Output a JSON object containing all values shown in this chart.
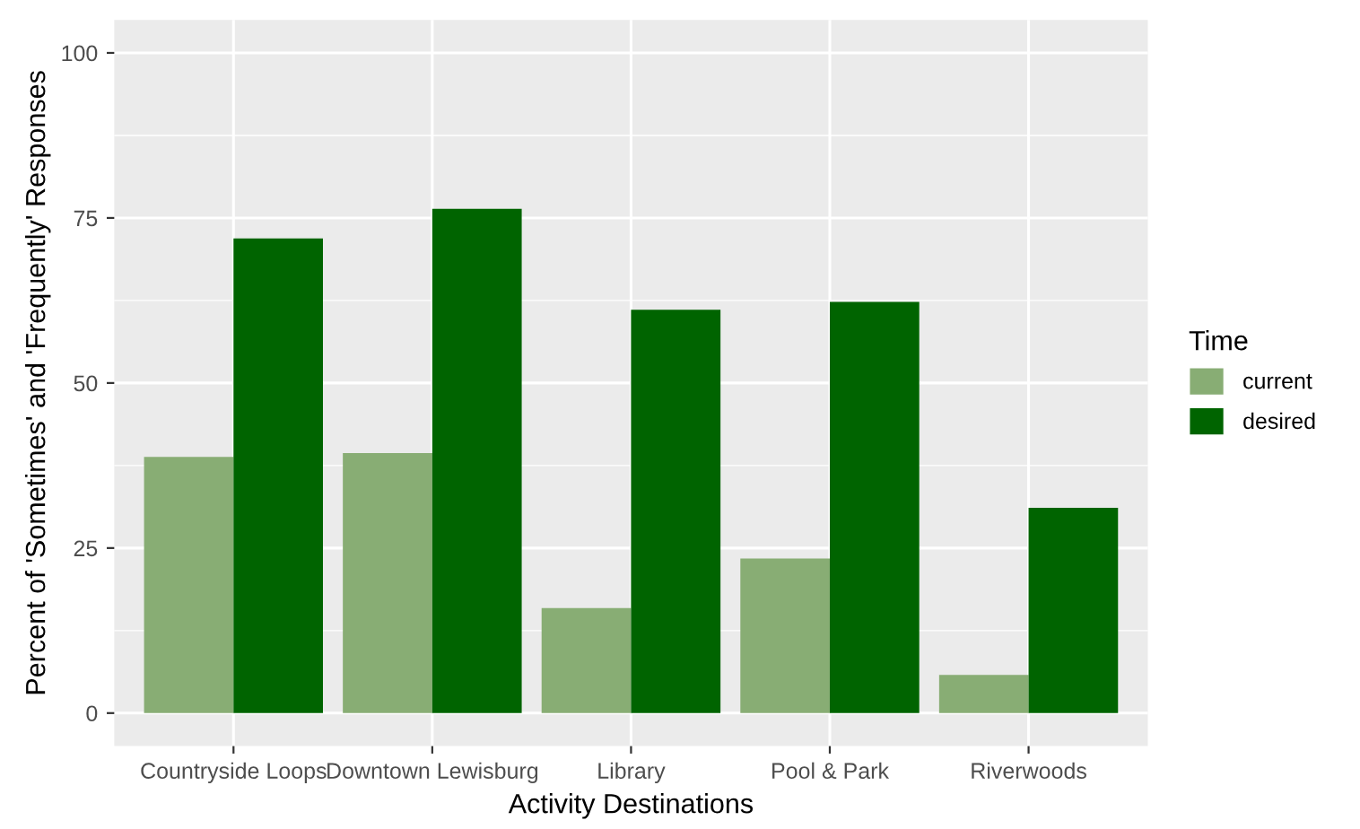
{
  "chart_data": {
    "type": "bar",
    "xlabel": "Activity Destinations",
    "ylabel": "Percent of 'Sometimes' and 'Frequently' Responses",
    "legend_title": "Time",
    "categories": [
      "Countryside Loops",
      "Downtown Lewisburg",
      "Library",
      "Pool & Park",
      "Riverwoods"
    ],
    "series": [
      {
        "name": "current",
        "color": "#88ad74",
        "values": [
          38.8,
          39.4,
          15.9,
          23.4,
          5.8
        ]
      },
      {
        "name": "desired",
        "color": "#006400",
        "values": [
          71.9,
          76.4,
          61.1,
          62.3,
          31.1
        ]
      }
    ],
    "ylim": [
      -5,
      105
    ],
    "yticks": [
      0,
      25,
      50,
      75,
      100
    ],
    "grid": true,
    "legend": "right"
  }
}
